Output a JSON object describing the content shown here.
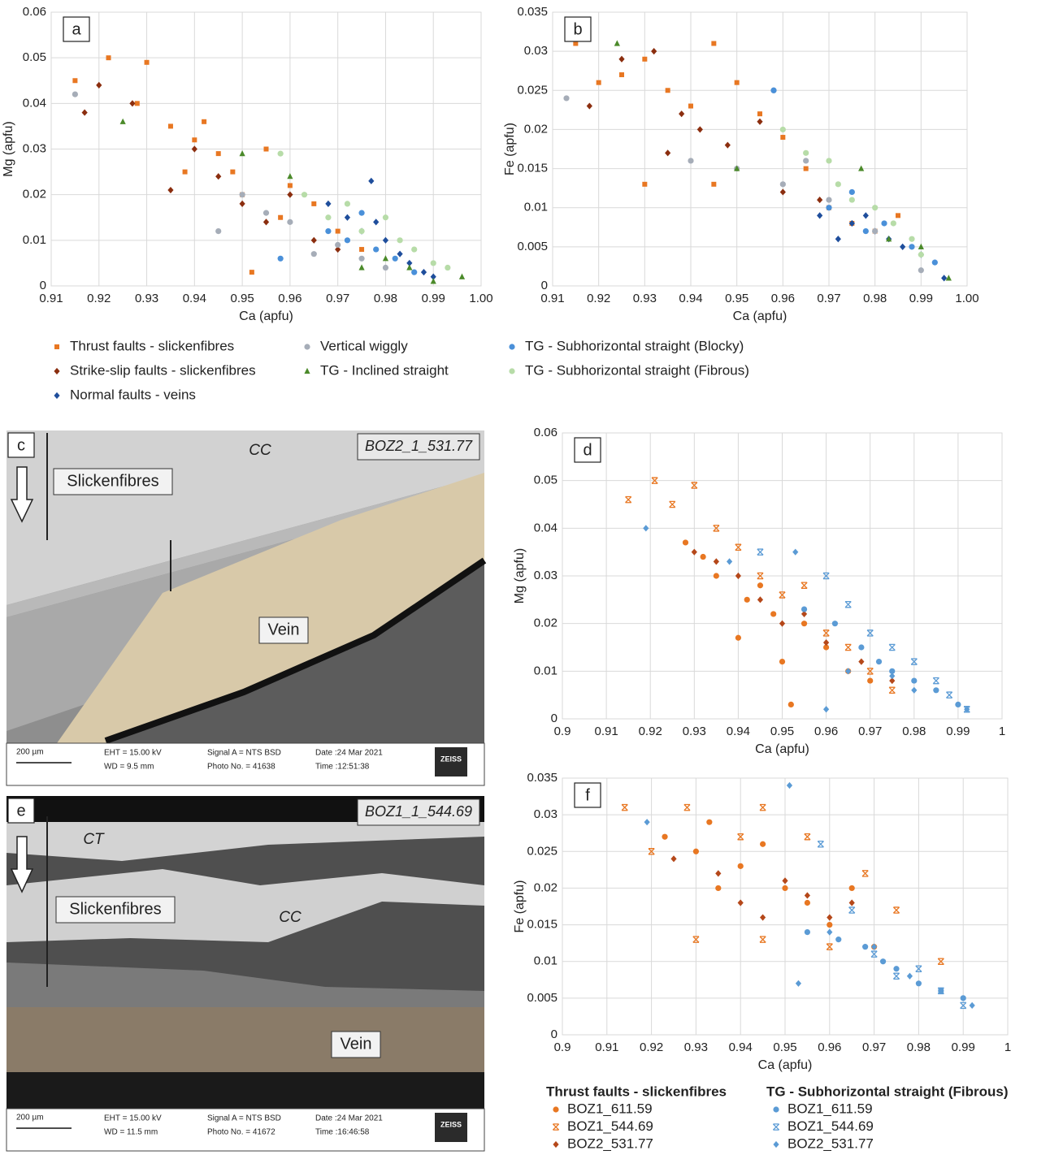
{
  "chart_data": [
    {
      "type": "scatter",
      "panel": "a",
      "x_label": "Ca (apfu)",
      "y_label": "Mg (apfu)",
      "xlim": [
        0.91,
        1
      ],
      "ylim": [
        0,
        0.06
      ],
      "xticks": [
        0.91,
        0.92,
        0.93,
        0.94,
        0.95,
        0.96,
        0.97,
        0.98,
        0.99,
        {
          "value": 1,
          "label": "1.00"
        }
      ],
      "yticks": [
        0,
        0.01,
        0.02,
        0.03,
        0.04,
        0.05,
        0.06
      ],
      "grid": true,
      "series": [
        {
          "name": "Thrust faults - slickenfibres",
          "color": "#e87722",
          "marker": "square",
          "x": [
            0.915,
            0.922,
            0.93,
            0.928,
            0.935,
            0.94,
            0.945,
            0.948,
            0.95,
            0.955,
            0.958,
            0.96,
            0.965,
            0.97,
            0.975,
            0.952,
            0.942,
            0.938
          ],
          "values": [
            0.045,
            0.05,
            0.049,
            0.04,
            0.035,
            0.032,
            0.029,
            0.025,
            0.02,
            0.03,
            0.015,
            0.022,
            0.018,
            0.012,
            0.008,
            0.003,
            0.036,
            0.025
          ]
        },
        {
          "name": "Strike-slip faults - slickenfibres",
          "color": "#8b2e0f",
          "marker": "diamond",
          "x": [
            0.917,
            0.92,
            0.927,
            0.935,
            0.94,
            0.945,
            0.95,
            0.955,
            0.96,
            0.965,
            0.97
          ],
          "values": [
            0.038,
            0.044,
            0.04,
            0.021,
            0.03,
            0.024,
            0.018,
            0.014,
            0.02,
            0.01,
            0.008
          ]
        },
        {
          "name": "Normal faults - veins",
          "color": "#1f4e9c",
          "marker": "diamond",
          "x": [
            0.968,
            0.972,
            0.975,
            0.977,
            0.98,
            0.983,
            0.985,
            0.988,
            0.99,
            0.978
          ],
          "values": [
            0.018,
            0.015,
            0.012,
            0.023,
            0.01,
            0.007,
            0.005,
            0.003,
            0.002,
            0.014
          ]
        },
        {
          "name": "Vertical wiggly",
          "color": "#a6adb8",
          "marker": "circle",
          "x": [
            0.915,
            0.945,
            0.95,
            0.955,
            0.96,
            0.965,
            0.97,
            0.975,
            0.98
          ],
          "values": [
            0.042,
            0.012,
            0.02,
            0.016,
            0.014,
            0.007,
            0.009,
            0.006,
            0.004
          ]
        },
        {
          "name": "TG - Inclined straight",
          "color": "#4b8a2a",
          "marker": "triangle",
          "x": [
            0.925,
            0.95,
            0.96,
            0.975,
            0.98,
            0.985,
            0.99,
            0.996
          ],
          "values": [
            0.036,
            0.029,
            0.024,
            0.004,
            0.006,
            0.004,
            0.001,
            0.002
          ]
        },
        {
          "name": "TG - Subhorizontal straight (Blocky)",
          "color": "#4a90d9",
          "marker": "circle",
          "x": [
            0.958,
            0.968,
            0.972,
            0.975,
            0.978,
            0.982,
            0.986
          ],
          "values": [
            0.006,
            0.012,
            0.01,
            0.016,
            0.008,
            0.006,
            0.003
          ]
        },
        {
          "name": "TG - Subhorizontal straight (Fibrous)",
          "color": "#b7dca8",
          "marker": "circle",
          "x": [
            0.958,
            0.963,
            0.968,
            0.972,
            0.975,
            0.98,
            0.983,
            0.986,
            0.99,
            0.993
          ],
          "values": [
            0.029,
            0.02,
            0.015,
            0.018,
            0.012,
            0.015,
            0.01,
            0.008,
            0.005,
            0.004
          ]
        }
      ]
    },
    {
      "type": "scatter",
      "panel": "b",
      "x_label": "Ca (apfu)",
      "y_label": "Fe (apfu)",
      "xlim": [
        0.91,
        1
      ],
      "ylim": [
        0,
        0.035
      ],
      "xticks": [
        0.91,
        0.92,
        0.93,
        0.94,
        0.95,
        0.96,
        0.97,
        0.98,
        0.99,
        {
          "value": 1,
          "label": "1.00"
        }
      ],
      "yticks": [
        0,
        0.005,
        0.01,
        0.015,
        0.02,
        0.025,
        0.03,
        0.035
      ],
      "grid": true,
      "series": [
        {
          "color": "#e87722",
          "marker": "square",
          "x": [
            0.915,
            0.92,
            0.925,
            0.93,
            0.935,
            0.94,
            0.945,
            0.95,
            0.955,
            0.96,
            0.93,
            0.945,
            0.965,
            0.97,
            0.975,
            0.98,
            0.985
          ],
          "values": [
            0.031,
            0.026,
            0.027,
            0.029,
            0.025,
            0.023,
            0.031,
            0.026,
            0.022,
            0.019,
            0.013,
            0.013,
            0.015,
            0.01,
            0.008,
            0.007,
            0.009
          ]
        },
        {
          "color": "#8b2e0f",
          "marker": "diamond",
          "x": [
            0.918,
            0.925,
            0.932,
            0.938,
            0.935,
            0.942,
            0.948,
            0.955,
            0.96,
            0.968
          ],
          "values": [
            0.023,
            0.029,
            0.03,
            0.022,
            0.017,
            0.02,
            0.018,
            0.021,
            0.012,
            0.011
          ]
        },
        {
          "color": "#1f4e9c",
          "marker": "diamond",
          "x": [
            0.968,
            0.972,
            0.975,
            0.978,
            0.98,
            0.983,
            0.986,
            0.99,
            0.995
          ],
          "values": [
            0.009,
            0.006,
            0.008,
            0.009,
            0.007,
            0.006,
            0.005,
            0.004,
            0.001
          ]
        },
        {
          "color": "#a6adb8",
          "marker": "circle",
          "x": [
            0.913,
            0.94,
            0.95,
            0.958,
            0.96,
            0.965,
            0.97,
            0.98,
            0.99
          ],
          "values": [
            0.024,
            0.016,
            0.015,
            0.025,
            0.013,
            0.016,
            0.011,
            0.007,
            0.002
          ]
        },
        {
          "color": "#4b8a2a",
          "marker": "triangle",
          "x": [
            0.924,
            0.95,
            0.977,
            0.983,
            0.99,
            0.996
          ],
          "values": [
            0.031,
            0.015,
            0.015,
            0.006,
            0.005,
            0.001
          ]
        },
        {
          "color": "#4a90d9",
          "marker": "circle",
          "x": [
            0.958,
            0.97,
            0.975,
            0.978,
            0.982,
            0.988,
            0.993
          ],
          "values": [
            0.025,
            0.01,
            0.012,
            0.007,
            0.008,
            0.005,
            0.003
          ]
        },
        {
          "color": "#b7dca8",
          "marker": "circle",
          "x": [
            0.96,
            0.965,
            0.97,
            0.972,
            0.975,
            0.98,
            0.984,
            0.988,
            0.99
          ],
          "values": [
            0.02,
            0.017,
            0.016,
            0.013,
            0.011,
            0.01,
            0.008,
            0.006,
            0.004
          ]
        }
      ]
    },
    {
      "type": "scatter",
      "panel": "d",
      "x_label": "Ca (apfu)",
      "y_label": "Mg (apfu)",
      "xlim": [
        0.9,
        1
      ],
      "ylim": [
        0,
        0.06
      ],
      "xticks": [
        0.9,
        0.91,
        0.92,
        0.93,
        0.94,
        0.95,
        0.96,
        0.97,
        0.98,
        0.99,
        1
      ],
      "yticks": [
        0,
        0.01,
        0.02,
        0.03,
        0.04,
        0.05,
        0.06
      ],
      "grid": true,
      "legend_groups": [
        "Thrust faults - slickenfibres",
        "TG - Subhorizontal straight (Fibrous)"
      ],
      "series": [
        {
          "group": 0,
          "name": "BOZ1_611.59",
          "color": "#e87722",
          "marker": "circle",
          "x": [
            0.928,
            0.932,
            0.935,
            0.94,
            0.942,
            0.945,
            0.948,
            0.95,
            0.952,
            0.955,
            0.96,
            0.965,
            0.97
          ],
          "values": [
            0.037,
            0.034,
            0.03,
            0.017,
            0.025,
            0.028,
            0.022,
            0.012,
            0.003,
            0.02,
            0.015,
            0.01,
            0.008
          ]
        },
        {
          "group": 0,
          "name": "BOZ1_544.69",
          "color": "#e87722",
          "marker": "cross",
          "x": [
            0.915,
            0.921,
            0.925,
            0.93,
            0.935,
            0.94,
            0.945,
            0.95,
            0.955,
            0.96,
            0.965,
            0.97,
            0.975
          ],
          "values": [
            0.046,
            0.05,
            0.045,
            0.049,
            0.04,
            0.036,
            0.03,
            0.026,
            0.028,
            0.018,
            0.015,
            0.01,
            0.006
          ]
        },
        {
          "group": 0,
          "name": "BOZ2_531.77",
          "color": "#b5481a",
          "marker": "diamond",
          "x": [
            0.93,
            0.935,
            0.94,
            0.945,
            0.95,
            0.955,
            0.96,
            0.968,
            0.975
          ],
          "values": [
            0.035,
            0.033,
            0.03,
            0.025,
            0.02,
            0.022,
            0.016,
            0.012,
            0.008
          ]
        },
        {
          "group": 1,
          "name": "BOZ1_611.59",
          "color": "#5b9bd5",
          "marker": "circle",
          "x": [
            0.955,
            0.962,
            0.968,
            0.972,
            0.975,
            0.98,
            0.985,
            0.99
          ],
          "values": [
            0.023,
            0.02,
            0.015,
            0.012,
            0.01,
            0.008,
            0.006,
            0.003
          ]
        },
        {
          "group": 1,
          "name": "BOZ1_544.69",
          "color": "#5b9bd5",
          "marker": "cross",
          "x": [
            0.945,
            0.96,
            0.965,
            0.97,
            0.975,
            0.98,
            0.985,
            0.988,
            0.992
          ],
          "values": [
            0.035,
            0.03,
            0.024,
            0.018,
            0.015,
            0.012,
            0.008,
            0.005,
            0.002
          ]
        },
        {
          "group": 1,
          "name": "BOZ2_531.77",
          "color": "#5b9bd5",
          "marker": "diamond",
          "x": [
            0.919,
            0.938,
            0.953,
            0.96,
            0.965,
            0.975,
            0.98,
            0.992
          ],
          "values": [
            0.04,
            0.033,
            0.035,
            0.002,
            0.01,
            0.009,
            0.006,
            0.002
          ]
        }
      ]
    },
    {
      "type": "scatter",
      "panel": "f",
      "x_label": "Ca (apfu)",
      "y_label": "Fe (apfu)",
      "xlim": [
        0.9,
        1
      ],
      "ylim": [
        0,
        0.035
      ],
      "xticks": [
        0.9,
        0.91,
        0.92,
        0.93,
        0.94,
        0.95,
        0.96,
        0.97,
        0.98,
        0.99,
        1
      ],
      "yticks": [
        0,
        0.005,
        0.01,
        0.015,
        0.02,
        0.025,
        0.03,
        0.035
      ],
      "grid": true,
      "series": [
        {
          "color": "#e87722",
          "marker": "circle",
          "x": [
            0.923,
            0.93,
            0.933,
            0.935,
            0.94,
            0.945,
            0.95,
            0.955,
            0.96,
            0.965,
            0.97
          ],
          "values": [
            0.027,
            0.025,
            0.029,
            0.02,
            0.023,
            0.026,
            0.02,
            0.018,
            0.015,
            0.02,
            0.012
          ]
        },
        {
          "color": "#e87722",
          "marker": "cross",
          "x": [
            0.914,
            0.92,
            0.928,
            0.93,
            0.94,
            0.945,
            0.945,
            0.955,
            0.96,
            0.968,
            0.975,
            0.985
          ],
          "values": [
            0.031,
            0.025,
            0.031,
            0.013,
            0.027,
            0.031,
            0.013,
            0.027,
            0.012,
            0.022,
            0.017,
            0.01
          ]
        },
        {
          "color": "#b5481a",
          "marker": "diamond",
          "x": [
            0.925,
            0.935,
            0.94,
            0.945,
            0.95,
            0.955,
            0.96,
            0.965
          ],
          "values": [
            0.024,
            0.022,
            0.018,
            0.016,
            0.021,
            0.019,
            0.016,
            0.018
          ]
        },
        {
          "color": "#5b9bd5",
          "marker": "circle",
          "x": [
            0.955,
            0.962,
            0.968,
            0.972,
            0.975,
            0.98,
            0.985,
            0.99
          ],
          "values": [
            0.014,
            0.013,
            0.012,
            0.01,
            0.009,
            0.007,
            0.006,
            0.005
          ]
        },
        {
          "color": "#5b9bd5",
          "marker": "cross",
          "x": [
            0.958,
            0.965,
            0.97,
            0.975,
            0.98,
            0.985,
            0.99
          ],
          "values": [
            0.026,
            0.017,
            0.011,
            0.008,
            0.009,
            0.006,
            0.004
          ]
        },
        {
          "color": "#5b9bd5",
          "marker": "diamond",
          "x": [
            0.919,
            0.951,
            0.953,
            0.96,
            0.97,
            0.978,
            0.992
          ],
          "values": [
            0.029,
            0.034,
            0.007,
            0.014,
            0.012,
            0.008,
            0.004
          ]
        }
      ]
    }
  ],
  "images": [
    {
      "panel": "c",
      "sample": "BOZ2_1_531.77",
      "labels": [
        "CC",
        "Slickenfibres",
        "Vein"
      ],
      "footer": [
        "200 µm",
        "EHT = 15.00 kV",
        "WD = 9.5 mm",
        "Signal A = NTS BSD",
        "Photo No. = 41638",
        "Date :24 Mar 2021",
        "Time :12:51:38",
        "ZEISS"
      ]
    },
    {
      "panel": "e",
      "sample": "BOZ1_1_544.69",
      "labels": [
        "CT",
        "Slickenfibres",
        "CC",
        "Vein"
      ],
      "footer": [
        "200 µm",
        "EHT = 15.00 kV",
        "WD = 11.5 mm",
        "Signal A = NTS BSD",
        "Photo No. = 41672",
        "Date :24 Mar 2021",
        "Time :16:46:58",
        "ZEISS"
      ]
    }
  ]
}
